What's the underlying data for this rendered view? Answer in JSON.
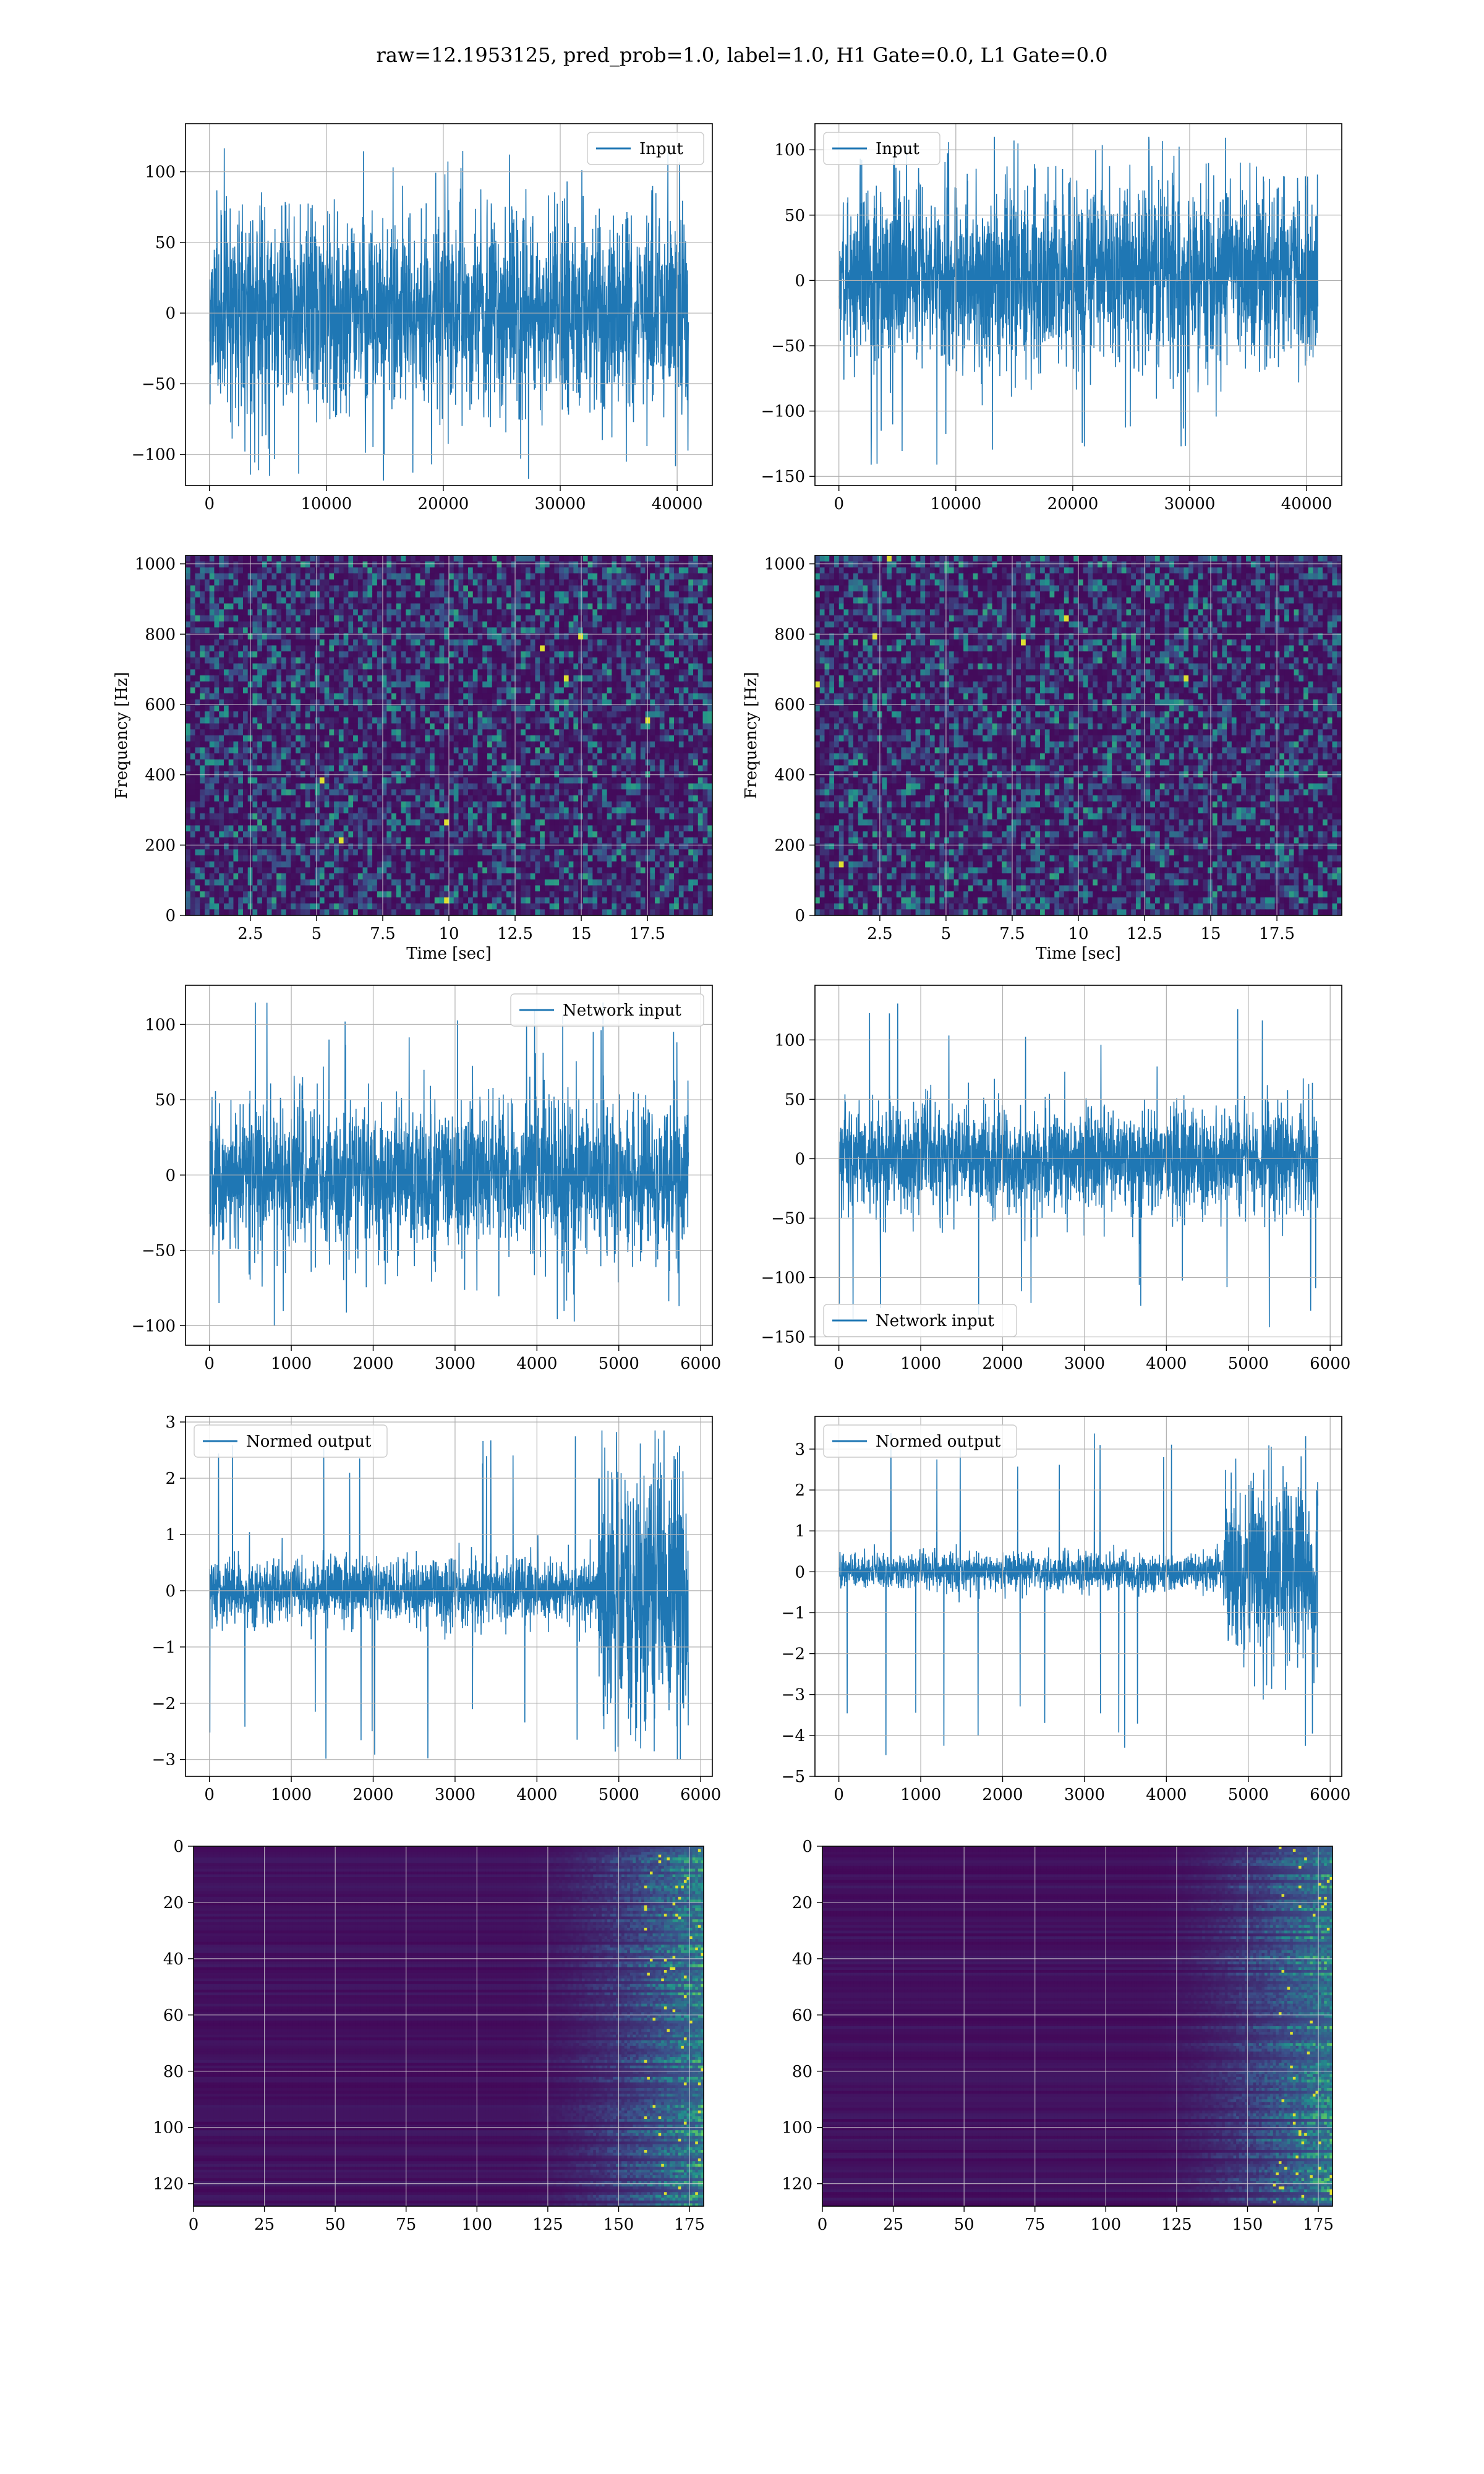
{
  "figure": {
    "suptitle": "raw=12.1953125, pred_prob=1.0, label=1.0, H1 Gate=0.0, L1 Gate=0.0",
    "line_color": "#1f77b4",
    "grid_color": "#b0b0b0",
    "colormap": "viridis",
    "colormap_stops": [
      "#440154",
      "#3b528b",
      "#21918c",
      "#5ec962",
      "#fde725"
    ]
  },
  "chart_data": [
    {
      "id": "input-h1",
      "type": "line",
      "title": "",
      "xlabel": "",
      "ylabel": "",
      "legend": "Input",
      "legend_loc": "upper right",
      "series": [
        {
          "name": "Input",
          "n_points": 40960,
          "envelope_typical": [
            -60,
            65
          ],
          "peak_max": 122,
          "peak_min": -120
        }
      ],
      "xlim": [
        -2048,
        43008
      ],
      "ylim": [
        -122,
        134
      ],
      "xticks": [
        0,
        10000,
        20000,
        30000,
        40000
      ],
      "yticks": [
        -100,
        -50,
        0,
        50,
        100
      ],
      "grid": true
    },
    {
      "id": "input-l1",
      "type": "line",
      "title": "",
      "xlabel": "",
      "ylabel": "",
      "legend": "Input",
      "legend_loc": "upper left",
      "series": [
        {
          "name": "Input",
          "n_points": 40960,
          "envelope_typical": [
            -60,
            65
          ],
          "peak_max": 110,
          "peak_min": -145
        }
      ],
      "xlim": [
        -2048,
        43008
      ],
      "ylim": [
        -157,
        120
      ],
      "xticks": [
        0,
        10000,
        20000,
        30000,
        40000
      ],
      "yticks": [
        -150,
        -100,
        -50,
        0,
        50,
        100
      ],
      "grid": true
    },
    {
      "id": "spectrogram-h1",
      "type": "heatmap",
      "title": "",
      "xlabel": "Time [sec]",
      "ylabel": "Frequency [Hz]",
      "xlim": [
        0.05,
        19.95
      ],
      "ylim": [
        0,
        1024
      ],
      "xticks": [
        2.5,
        5.0,
        7.5,
        10.0,
        12.5,
        15.0,
        17.5
      ],
      "yticks": [
        0,
        200,
        400,
        600,
        800,
        1000
      ],
      "values": "dense noise-like spectrogram, mostly dark purple with scattered teal/green speckles and a few yellow points",
      "grid": true
    },
    {
      "id": "spectrogram-l1",
      "type": "heatmap",
      "title": "",
      "xlabel": "Time [sec]",
      "ylabel": "Frequency [Hz]",
      "xlim": [
        0.05,
        19.95
      ],
      "ylim": [
        0,
        1024
      ],
      "xticks": [
        2.5,
        5.0,
        7.5,
        10.0,
        12.5,
        15.0,
        17.5
      ],
      "yticks": [
        0,
        200,
        400,
        600,
        800,
        1000
      ],
      "values": "dense noise-like spectrogram, mostly dark purple with scattered teal/green speckles and a few yellow points",
      "grid": true
    },
    {
      "id": "network-input-h1",
      "type": "line",
      "title": "",
      "xlabel": "",
      "ylabel": "",
      "legend": "Network input",
      "legend_loc": "upper right",
      "series": [
        {
          "name": "Network input",
          "n_points": 5850,
          "envelope_typical": [
            -45,
            45
          ],
          "peak_max": 115,
          "peak_min": -100
        }
      ],
      "xlim": [
        -292,
        6142
      ],
      "ylim": [
        -113,
        126
      ],
      "xticks": [
        0,
        1000,
        2000,
        3000,
        4000,
        5000,
        6000
      ],
      "yticks": [
        -100,
        -50,
        0,
        50,
        100
      ],
      "grid": true
    },
    {
      "id": "network-input-l1",
      "type": "line",
      "title": "",
      "xlabel": "",
      "ylabel": "",
      "legend": "Network input",
      "legend_loc": "lower left",
      "series": [
        {
          "name": "Network input",
          "n_points": 5850,
          "envelope_typical": [
            -40,
            40
          ],
          "peak_max": 133,
          "peak_min": -143
        }
      ],
      "xlim": [
        -292,
        6142
      ],
      "ylim": [
        -157,
        146
      ],
      "xticks": [
        0,
        1000,
        2000,
        3000,
        4000,
        5000,
        6000
      ],
      "yticks": [
        -150,
        -100,
        -50,
        0,
        50,
        100
      ],
      "grid": true
    },
    {
      "id": "normed-output-h1",
      "type": "line",
      "title": "",
      "xlabel": "",
      "ylabel": "",
      "legend": "Normed output",
      "legend_loc": "upper left",
      "series": [
        {
          "name": "Normed output",
          "n_points": 5850,
          "envelope_typical": [
            -0.5,
            0.5
          ],
          "burst_start_x": 4750,
          "burst_envelope": [
            -2.5,
            2.5
          ],
          "peak_max": 2.85,
          "peak_min": -3.0
        }
      ],
      "xlim": [
        -292,
        6142
      ],
      "ylim": [
        -3.3,
        3.1
      ],
      "xticks": [
        0,
        1000,
        2000,
        3000,
        4000,
        5000,
        6000
      ],
      "yticks": [
        -3,
        -2,
        -1,
        0,
        1,
        2,
        3
      ],
      "grid": true
    },
    {
      "id": "normed-output-l1",
      "type": "line",
      "title": "",
      "xlabel": "",
      "ylabel": "",
      "legend": "Normed output",
      "legend_loc": "upper left",
      "series": [
        {
          "name": "Normed output",
          "n_points": 5850,
          "envelope_typical": [
            -0.4,
            0.4
          ],
          "burst_start_x": 4700,
          "burst_envelope": [
            -2.0,
            2.5
          ],
          "peak_max": 3.5,
          "peak_min": -4.5
        }
      ],
      "xlim": [
        -292,
        6142
      ],
      "ylim": [
        -5.0,
        3.8
      ],
      "xticks": [
        0,
        1000,
        2000,
        3000,
        4000,
        5000,
        6000
      ],
      "yticks": [
        -5,
        -4,
        -3,
        -2,
        -1,
        0,
        1,
        2,
        3
      ],
      "grid": true
    },
    {
      "id": "feature-map-h1",
      "type": "heatmap",
      "title": "",
      "xlabel": "",
      "ylabel": "",
      "xlim": [
        0,
        180
      ],
      "ylim": [
        128,
        0
      ],
      "xticks": [
        0,
        25,
        50,
        75,
        100,
        125,
        150,
        175
      ],
      "yticks": [
        0,
        20,
        40,
        60,
        80,
        100,
        120
      ],
      "values": "128 rows × 180 columns; dark purple for columns < 125, increasingly teal/green with yellow hot spots in columns 150-175",
      "grid": true
    },
    {
      "id": "feature-map-l1",
      "type": "heatmap",
      "title": "",
      "xlabel": "",
      "ylabel": "",
      "xlim": [
        0,
        180
      ],
      "ylim": [
        128,
        0
      ],
      "xticks": [
        0,
        25,
        50,
        75,
        100,
        125,
        150,
        175
      ],
      "yticks": [
        0,
        20,
        40,
        60,
        80,
        100,
        120
      ],
      "values": "128 rows × 180 columns; dark purple for columns < 120, increasingly teal/green with yellow hot spots in columns 140-175",
      "grid": true
    }
  ]
}
